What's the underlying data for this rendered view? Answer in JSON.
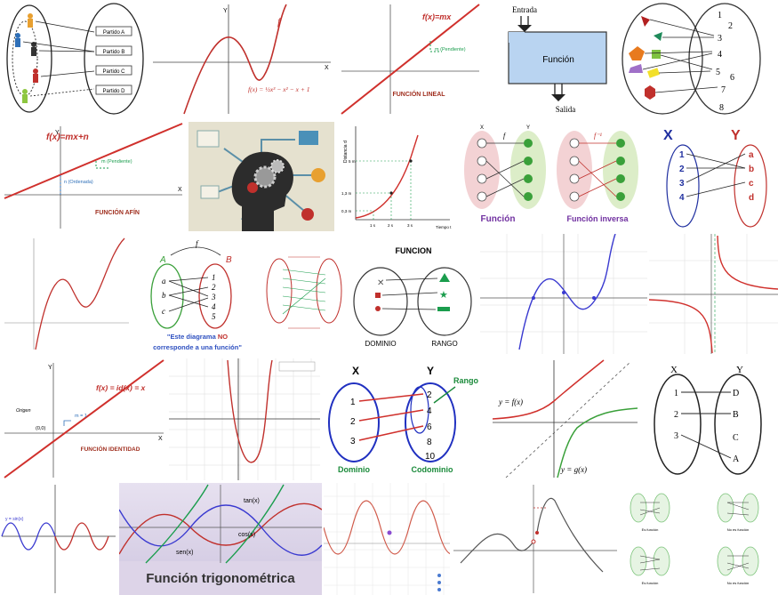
{
  "tiles": {
    "t1": {
      "items": [
        "Partido A",
        "Partido B",
        "Partido C",
        "Partido D"
      ]
    },
    "t2": {
      "f": "f",
      "x": "X",
      "y": "Y",
      "formula": "f(x) = ½x³ − x² − x + 1"
    },
    "t3": {
      "formula": "f(x)=mx",
      "slope": "m (Pendiente)",
      "caption": "FUNCIÓN LINEAL"
    },
    "t4": {
      "input": "Entrada",
      "box": "Función",
      "output": "Salida"
    },
    "t5": {
      "numbers": [
        "1",
        "2",
        "3",
        "4",
        "5",
        "6",
        "7",
        "8"
      ]
    },
    "t6": {
      "formula": "f(x)=mx+n",
      "slope": "m (Pendiente)",
      "intercept": "n (Ordenada)",
      "caption": "FUNCIÓN AFÍN",
      "y": "Y",
      "x": "X"
    },
    "t8": {
      "ylabel": "Distancia d",
      "xlabel": "Tiempo t",
      "yticks": [
        "5 m",
        "1,3 m",
        "0,3 m"
      ],
      "xticks": [
        "1 s",
        "2 s",
        "3 s"
      ]
    },
    "t9": {
      "left": "Función",
      "right": "Función inversa",
      "f": "f",
      "finv": "f⁻¹",
      "x": "X",
      "y": "Y"
    },
    "t10": {
      "x": "X",
      "y": "Y",
      "left": [
        "1",
        "2",
        "3",
        "4"
      ],
      "right": [
        "a",
        "b",
        "c",
        "d"
      ]
    },
    "t12": {
      "a": "A",
      "b": "B",
      "f": "f",
      "left": [
        "a",
        "b",
        "c"
      ],
      "right": [
        "1",
        "2",
        "3",
        "4",
        "5"
      ],
      "note1": "\"Este diagrama ",
      "note_no": "NO",
      "note2": "corresponde a una función\""
    },
    "t14": {
      "title": "FUNCION",
      "left": "DOMINIO",
      "right": "RANGO"
    },
    "t17": {
      "formula": "f(x) = id(x) = x",
      "origin": "Origen",
      "point": "(0,0)",
      "m": "m = 1",
      "caption": "FUNCIÓN IDENTIDAD",
      "x": "X",
      "y": "Y"
    },
    "t19": {
      "x": "X",
      "y": "Y",
      "left": [
        "1",
        "2",
        "3"
      ],
      "right": [
        "2",
        "4",
        "6",
        "8",
        "10"
      ],
      "rango": "Rango",
      "dominio": "Dominio",
      "codominio": "Codominio"
    },
    "t20": {
      "fx": "y = f(x)",
      "gx": "y = g(x)"
    },
    "t21": {
      "x": "X",
      "y": "Y",
      "left": [
        "1",
        "2",
        "3"
      ],
      "right": [
        "D",
        "B",
        "C",
        "A"
      ]
    },
    "t22": {
      "label": "y = sin(x)"
    },
    "t23": {
      "title": "Función trigonométrica",
      "tan": "tan(x)",
      "cos": "cos(x)",
      "sen": "sen(x)"
    },
    "t26": {
      "captions": [
        "Es función",
        "No es función",
        "Es función",
        "No es función"
      ]
    }
  }
}
